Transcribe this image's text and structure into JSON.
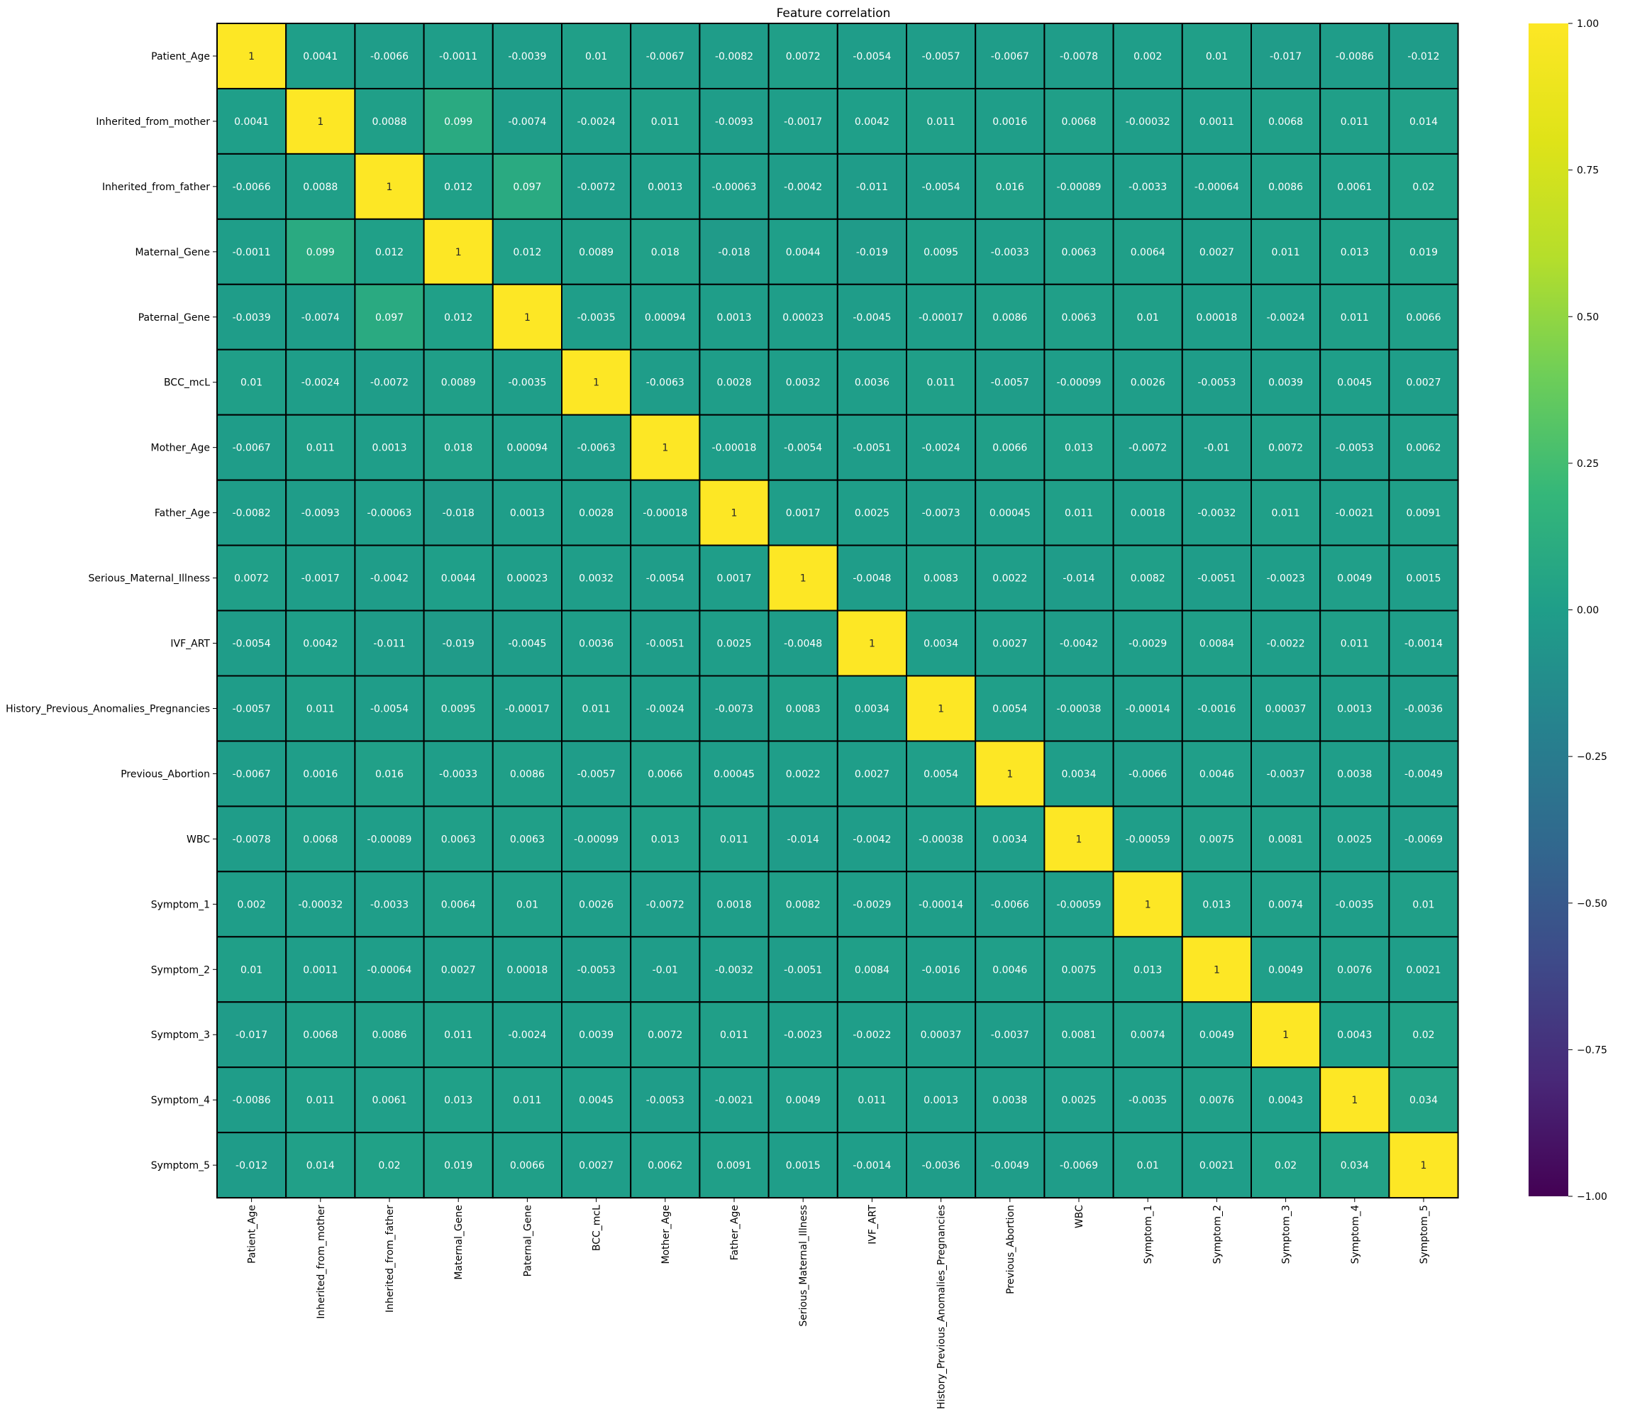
{
  "chart_data": {
    "type": "heatmap",
    "title": "Feature correlation",
    "labels": [
      "Patient_Age",
      "Inherited_from_mother",
      "Inherited_from_father",
      "Maternal_Gene",
      "Paternal_Gene",
      "BCC_mcL",
      "Mother_Age",
      "Father_Age",
      "Serious_Maternal_Illness",
      "IVF_ART",
      "History_Previous_Anomalies_Pregnancies",
      "Previous_Abortion",
      "WBC",
      "Symptom_1",
      "Symptom_2",
      "Symptom_3",
      "Symptom_4",
      "Symptom_5"
    ],
    "annotations": [
      [
        "1",
        "0.0041",
        "-0.0066",
        "-0.0011",
        "-0.0039",
        "0.01",
        "-0.0067",
        "-0.0082",
        "0.0072",
        "-0.0054",
        "-0.0057",
        "-0.0067",
        "-0.0078",
        "0.002",
        "0.01",
        "-0.017",
        "-0.0086",
        "-0.012"
      ],
      [
        "0.0041",
        "1",
        "0.0088",
        "0.099",
        "-0.0074",
        "-0.0024",
        "0.011",
        "-0.0093",
        "-0.0017",
        "0.0042",
        "0.011",
        "0.0016",
        "0.0068",
        "-0.00032",
        "0.0011",
        "0.0068",
        "0.011",
        "0.014"
      ],
      [
        "-0.0066",
        "0.0088",
        "1",
        "0.012",
        "0.097",
        "-0.0072",
        "0.0013",
        "-0.00063",
        "-0.0042",
        "-0.011",
        "-0.0054",
        "0.016",
        "-0.00089",
        "-0.0033",
        "-0.00064",
        "0.0086",
        "0.0061",
        "0.02"
      ],
      [
        "-0.0011",
        "0.099",
        "0.012",
        "1",
        "0.012",
        "0.0089",
        "0.018",
        "-0.018",
        "0.0044",
        "-0.019",
        "0.0095",
        "-0.0033",
        "0.0063",
        "0.0064",
        "0.0027",
        "0.011",
        "0.013",
        "0.019"
      ],
      [
        "-0.0039",
        "-0.0074",
        "0.097",
        "0.012",
        "1",
        "-0.0035",
        "0.00094",
        "0.0013",
        "0.00023",
        "-0.0045",
        "-0.00017",
        "0.0086",
        "0.0063",
        "0.01",
        "0.00018",
        "-0.0024",
        "0.011",
        "0.0066"
      ],
      [
        "0.01",
        "-0.0024",
        "-0.0072",
        "0.0089",
        "-0.0035",
        "1",
        "-0.0063",
        "0.0028",
        "0.0032",
        "0.0036",
        "0.011",
        "-0.0057",
        "-0.00099",
        "0.0026",
        "-0.0053",
        "0.0039",
        "0.0045",
        "0.0027"
      ],
      [
        "-0.0067",
        "0.011",
        "0.0013",
        "0.018",
        "0.00094",
        "-0.0063",
        "1",
        "-0.00018",
        "-0.0054",
        "-0.0051",
        "-0.0024",
        "0.0066",
        "0.013",
        "-0.0072",
        "-0.01",
        "0.0072",
        "-0.0053",
        "0.0062"
      ],
      [
        "-0.0082",
        "-0.0093",
        "-0.00063",
        "-0.018",
        "0.0013",
        "0.0028",
        "-0.00018",
        "1",
        "0.0017",
        "0.0025",
        "-0.0073",
        "0.00045",
        "0.011",
        "0.0018",
        "-0.0032",
        "0.011",
        "-0.0021",
        "0.0091"
      ],
      [
        "0.0072",
        "-0.0017",
        "-0.0042",
        "0.0044",
        "0.00023",
        "0.0032",
        "-0.0054",
        "0.0017",
        "1",
        "-0.0048",
        "0.0083",
        "0.0022",
        "-0.014",
        "0.0082",
        "-0.0051",
        "-0.0023",
        "0.0049",
        "0.0015"
      ],
      [
        "-0.0054",
        "0.0042",
        "-0.011",
        "-0.019",
        "-0.0045",
        "0.0036",
        "-0.0051",
        "0.0025",
        "-0.0048",
        "1",
        "0.0034",
        "0.0027",
        "-0.0042",
        "-0.0029",
        "0.0084",
        "-0.0022",
        "0.011",
        "-0.0014"
      ],
      [
        "-0.0057",
        "0.011",
        "-0.0054",
        "0.0095",
        "-0.00017",
        "0.011",
        "-0.0024",
        "-0.0073",
        "0.0083",
        "0.0034",
        "1",
        "0.0054",
        "-0.00038",
        "-0.00014",
        "-0.0016",
        "0.00037",
        "0.0013",
        "-0.0036"
      ],
      [
        "-0.0067",
        "0.0016",
        "0.016",
        "-0.0033",
        "0.0086",
        "-0.0057",
        "0.0066",
        "0.00045",
        "0.0022",
        "0.0027",
        "0.0054",
        "1",
        "0.0034",
        "-0.0066",
        "0.0046",
        "-0.0037",
        "0.0038",
        "-0.0049"
      ],
      [
        "-0.0078",
        "0.0068",
        "-0.00089",
        "0.0063",
        "0.0063",
        "-0.00099",
        "0.013",
        "0.011",
        "-0.014",
        "-0.0042",
        "-0.00038",
        "0.0034",
        "1",
        "-0.00059",
        "0.0075",
        "0.0081",
        "0.0025",
        "-0.0069"
      ],
      [
        "0.002",
        "-0.00032",
        "-0.0033",
        "0.0064",
        "0.01",
        "0.0026",
        "-0.0072",
        "0.0018",
        "0.0082",
        "-0.0029",
        "-0.00014",
        "-0.0066",
        "-0.00059",
        "1",
        "0.013",
        "0.0074",
        "-0.0035",
        "0.01"
      ],
      [
        "0.01",
        "0.0011",
        "-0.00064",
        "0.0027",
        "0.00018",
        "-0.0053",
        "-0.01",
        "-0.0032",
        "-0.0051",
        "0.0084",
        "-0.0016",
        "0.0046",
        "0.0075",
        "0.013",
        "1",
        "0.0049",
        "0.0076",
        "0.0021"
      ],
      [
        "-0.017",
        "0.0068",
        "0.0086",
        "0.011",
        "-0.0024",
        "0.0039",
        "0.0072",
        "0.011",
        "-0.0023",
        "-0.0022",
        "0.00037",
        "-0.0037",
        "0.0081",
        "0.0074",
        "0.0049",
        "1",
        "0.0043",
        "0.02"
      ],
      [
        "-0.0086",
        "0.011",
        "0.0061",
        "0.013",
        "0.011",
        "0.0045",
        "-0.0053",
        "-0.0021",
        "0.0049",
        "0.011",
        "0.0013",
        "0.0038",
        "0.0025",
        "-0.0035",
        "0.0076",
        "0.0043",
        "1",
        "0.034"
      ],
      [
        "-0.012",
        "0.014",
        "0.02",
        "0.019",
        "0.0066",
        "0.0027",
        "0.0062",
        "0.0091",
        "0.0015",
        "-0.0014",
        "-0.0036",
        "-0.0049",
        "-0.0069",
        "0.01",
        "0.0021",
        "0.02",
        "0.034",
        "1"
      ]
    ],
    "colorbar": {
      "colormap": "viridis",
      "vmin": -1.0,
      "vmax": 1.0,
      "ticks": [
        1.0,
        0.75,
        0.5,
        0.25,
        0.0,
        -0.25,
        -0.5,
        -0.75,
        -1.0
      ],
      "tick_labels": [
        "1.00",
        "0.75",
        "0.50",
        "0.25",
        "0.00",
        "−0.25",
        "−0.50",
        "−0.75",
        "−1.00"
      ]
    },
    "annotation_colors": {
      "dark_text": "#262626",
      "light_text": "#ffffff"
    },
    "cell_border_color": "#000000"
  }
}
